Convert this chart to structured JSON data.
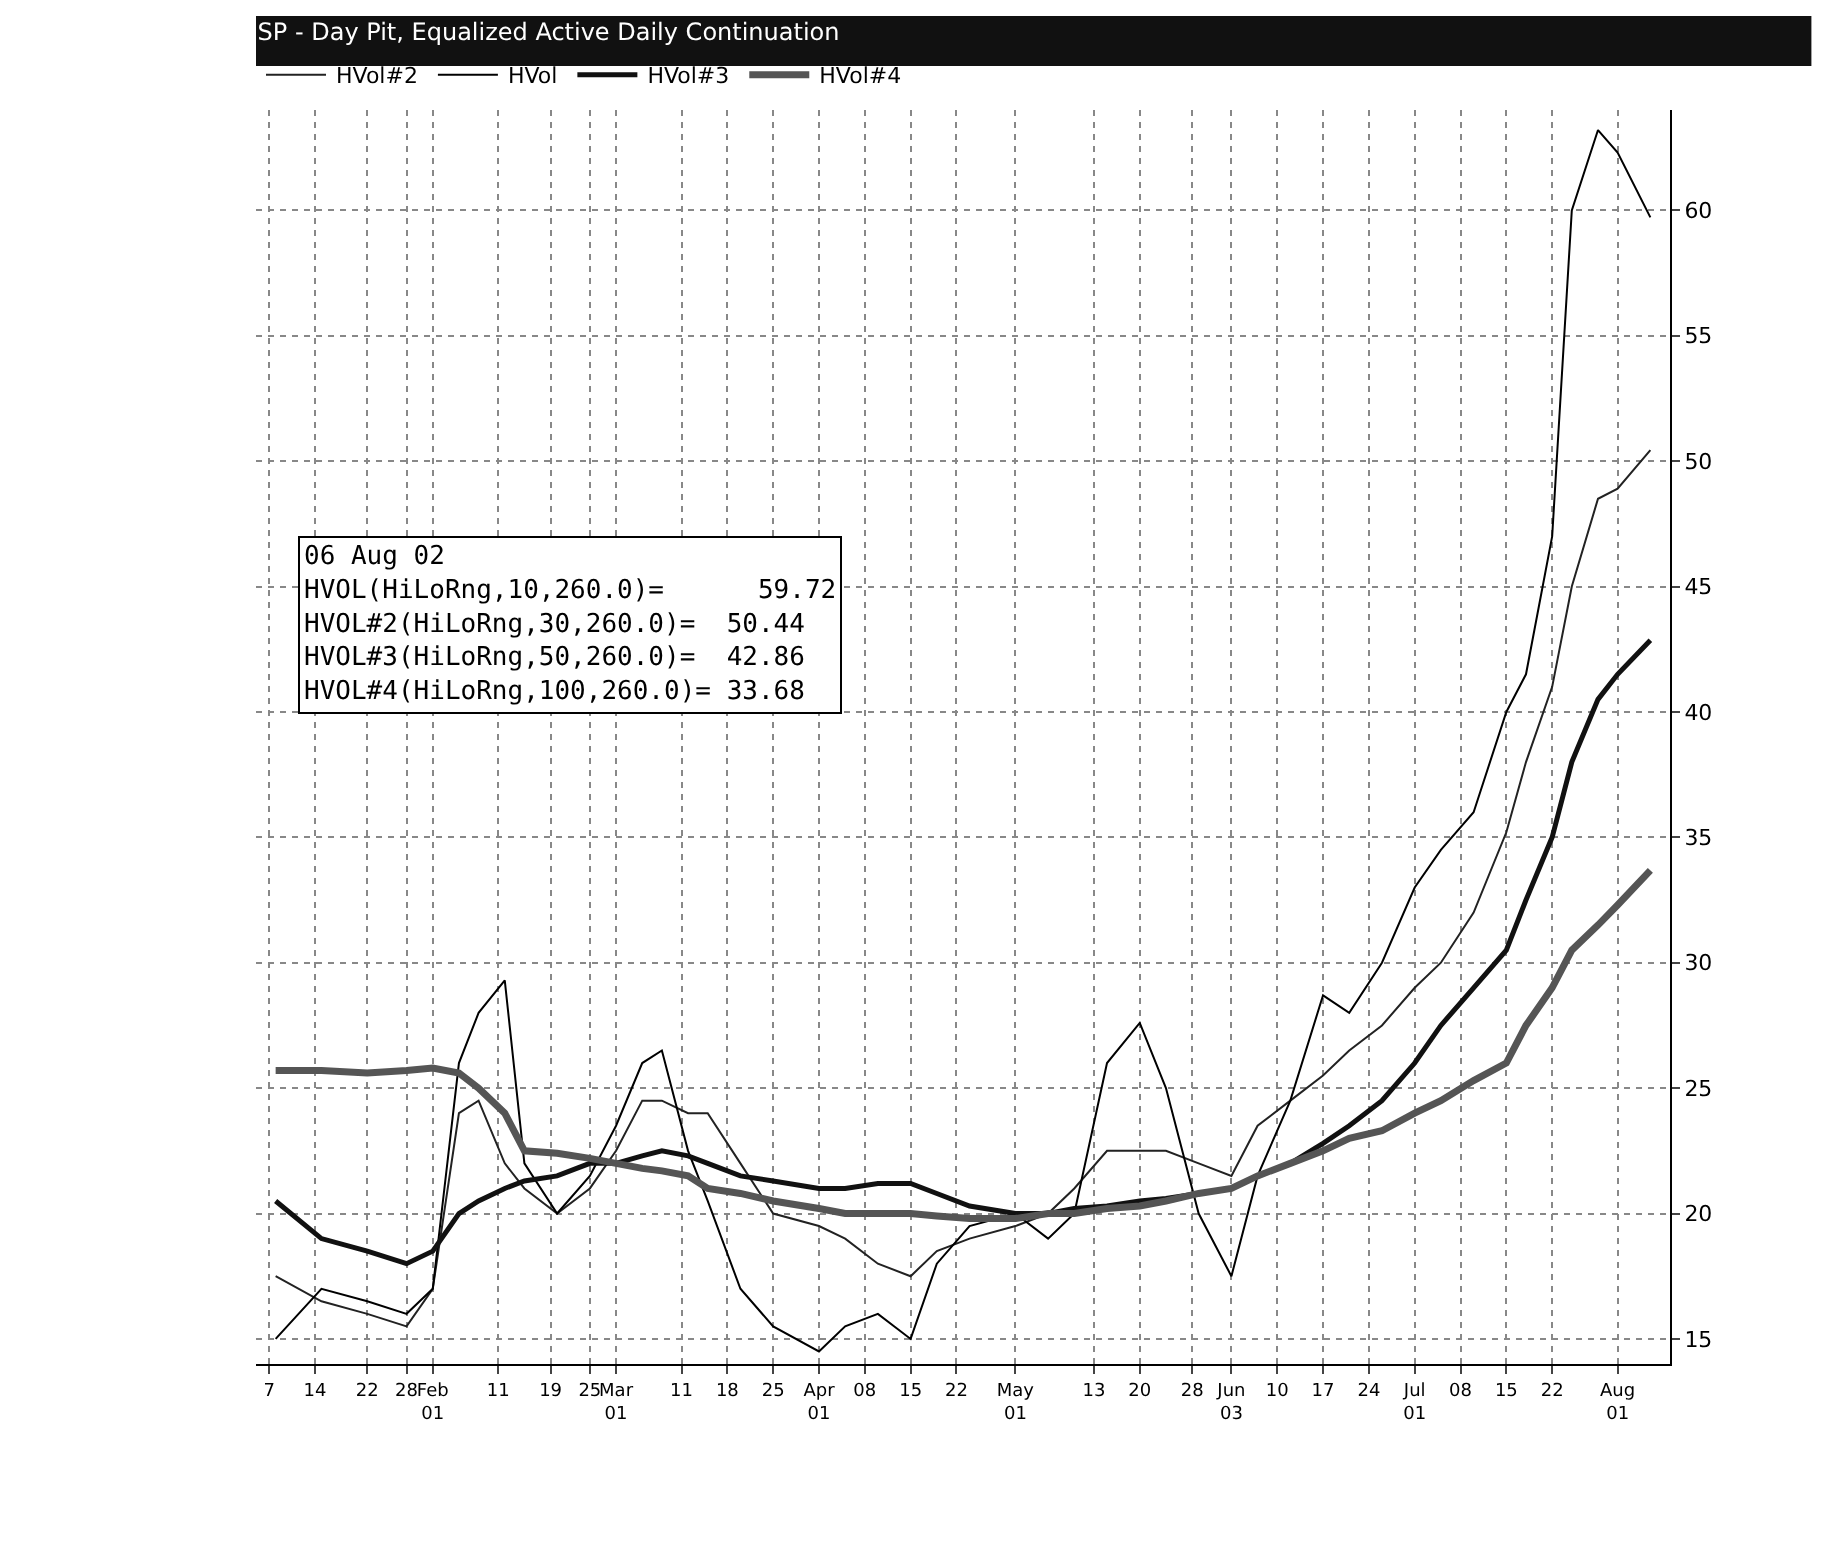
{
  "chart_data": {
    "type": "line",
    "title": "SP - Day Pit, Equalized Active Daily Continuation",
    "annotations": [
      "06 Aug 02",
      "HVOL(HiLoRng,10,260.0)=      59.72",
      "HVOL#2(HiLoRng,30,260.0)=  50.44",
      "HVOL#3(HiLoRng,50,260.0)=  42.86",
      "HVOL#4(HiLoRng,100,260.0)= 33.68"
    ],
    "x": [
      "--01-08",
      "--01-15",
      "--01-22",
      "--01-28",
      "--02-01",
      "--02-05",
      "--02-08",
      "--02-12",
      "--02-15",
      "--02-20",
      "--02-25",
      "--03-01",
      "--03-05",
      "--03-08",
      "--03-12",
      "--03-15",
      "--03-20",
      "--03-25",
      "--04-01",
      "--04-05",
      "--04-10",
      "--04-15",
      "--04-19",
      "--04-24",
      "--05-01",
      "--05-06",
      "--05-10",
      "--05-15",
      "--05-20",
      "--05-24",
      "--05-29",
      "--06-03",
      "--06-07",
      "--06-12",
      "--06-17",
      "--06-21",
      "--06-26",
      "--07-01",
      "--07-05",
      "--07-10",
      "--07-15",
      "--07-18",
      "--07-22",
      "--07-25",
      "--07-29",
      "--08-01",
      "--08-06"
    ],
    "series": [
      {
        "name": "HVol#2",
        "color": "#222222",
        "values": [
          17.5,
          16.5,
          16,
          15.5,
          17,
          24,
          24.5,
          22,
          21,
          20,
          21,
          22.5,
          24.5,
          24.5,
          24,
          24,
          22,
          20,
          19.5,
          19,
          18,
          17.5,
          18.5,
          19,
          19.5,
          20,
          21,
          22.5,
          22.5,
          22.5,
          22,
          21.5,
          23.5,
          24.5,
          25.5,
          26.5,
          27.5,
          29,
          30,
          32,
          35.2,
          38,
          41,
          45,
          48.5,
          48.9,
          50.44
        ]
      },
      {
        "name": "HVol",
        "color": "#000000",
        "values": [
          15,
          17,
          16.5,
          16,
          17,
          26,
          28,
          29.3,
          22,
          20,
          21.5,
          23.5,
          26,
          26.5,
          22.5,
          20.5,
          17,
          15.5,
          14.5,
          15.5,
          16,
          15,
          18,
          19.5,
          20,
          19,
          20,
          26,
          27.6,
          25,
          20,
          17.5,
          21.5,
          24.5,
          28.7,
          28,
          30,
          33,
          34.5,
          36,
          40,
          41.5,
          47,
          60,
          63.2,
          62.3,
          59.72
        ]
      },
      {
        "name": "HVol#3",
        "color": "#111111",
        "values": [
          20.5,
          19,
          18.5,
          18,
          18.5,
          20,
          20.5,
          21,
          21.3,
          21.5,
          22,
          22,
          22.3,
          22.5,
          22.3,
          22,
          21.5,
          21.3,
          21,
          21,
          21.2,
          21.2,
          20.8,
          20.3,
          20,
          20,
          20.2,
          20.3,
          20.5,
          20.6,
          20.8,
          21,
          21.5,
          22,
          22.8,
          23.5,
          24.5,
          26,
          27.5,
          29,
          30.5,
          32.5,
          35,
          38,
          40.5,
          41.5,
          42.86
        ]
      },
      {
        "name": "HVol#4",
        "color": "#555555",
        "values": [
          25.7,
          25.7,
          25.6,
          25.7,
          25.8,
          25.6,
          25,
          24,
          22.5,
          22.4,
          22.2,
          22,
          21.8,
          21.7,
          21.5,
          21,
          20.8,
          20.5,
          20.2,
          20,
          20,
          20,
          19.9,
          19.8,
          19.8,
          20,
          20,
          20.2,
          20.3,
          20.5,
          20.8,
          21,
          21.5,
          22,
          22.5,
          23,
          23.3,
          24,
          24.5,
          25.3,
          26,
          27.5,
          29,
          30.5,
          31.5,
          32.3,
          33.68
        ]
      }
    ],
    "xlim": [
      "--01-05",
      "--08-09"
    ],
    "xticks": [
      {
        "value": "--01-07",
        "label": "7"
      },
      {
        "value": "--01-14",
        "label": "14"
      },
      {
        "value": "--01-22",
        "label": "22"
      },
      {
        "value": "--01-28",
        "label": "28"
      },
      {
        "value": "--02-01",
        "label": "Feb\n01"
      },
      {
        "value": "--02-11",
        "label": "11"
      },
      {
        "value": "--02-19",
        "label": "19"
      },
      {
        "value": "--02-25",
        "label": "25"
      },
      {
        "value": "--03-01",
        "label": "Mar\n01"
      },
      {
        "value": "--03-11",
        "label": "11"
      },
      {
        "value": "--03-18",
        "label": "18"
      },
      {
        "value": "--03-25",
        "label": "25"
      },
      {
        "value": "--04-01",
        "label": "Apr\n01"
      },
      {
        "value": "--04-08",
        "label": "08"
      },
      {
        "value": "--04-15",
        "label": "15"
      },
      {
        "value": "--04-22",
        "label": "22"
      },
      {
        "value": "--05-01",
        "label": "May\n01"
      },
      {
        "value": "--05-13",
        "label": "13"
      },
      {
        "value": "--05-20",
        "label": "20"
      },
      {
        "value": "--05-28",
        "label": "28"
      },
      {
        "value": "--06-03",
        "label": "Jun\n03"
      },
      {
        "value": "--06-10",
        "label": "10"
      },
      {
        "value": "--06-17",
        "label": "17"
      },
      {
        "value": "--06-24",
        "label": "24"
      },
      {
        "value": "--07-01",
        "label": "Jul\n01"
      },
      {
        "value": "--07-08",
        "label": "08"
      },
      {
        "value": "--07-15",
        "label": "15"
      },
      {
        "value": "--07-22",
        "label": "22"
      },
      {
        "value": "--08-01",
        "label": "Aug\n01"
      }
    ],
    "ylim": [
      14,
      64
    ],
    "yticks": [
      15,
      20,
      25,
      30,
      35,
      40,
      45,
      50,
      55,
      60
    ],
    "grid": true,
    "legend": "top left",
    "line_style": "solid",
    "marker": "none"
  }
}
